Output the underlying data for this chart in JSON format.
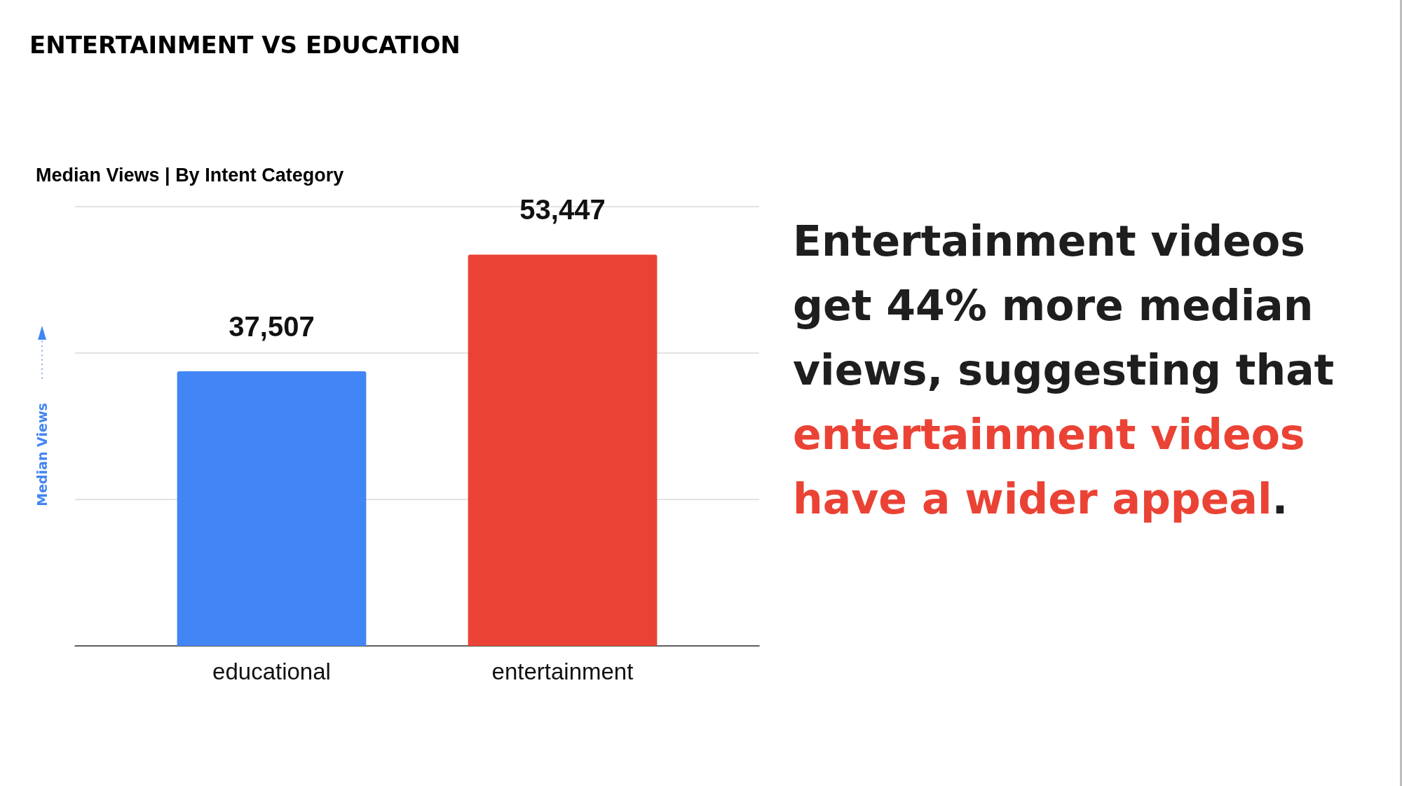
{
  "chart_data": {
    "type": "bar",
    "title": "ENTERTAINMENT VS EDUCATION",
    "subtitle": "Median Views | By Intent Category",
    "ylabel": "Median Views",
    "categories": [
      "educational",
      "entertainment"
    ],
    "values": [
      37507,
      53447
    ],
    "colors": [
      "#4285f4",
      "#ea4335"
    ],
    "value_labels": [
      "37,507",
      "53,447"
    ],
    "ylim": [
      0,
      60000
    ],
    "yticks": [
      {
        "value": 0,
        "label": null
      },
      {
        "value": 20000,
        "label": null
      },
      {
        "value": 40000,
        "label": null
      },
      {
        "value": 60000,
        "label": null
      }
    ],
    "grid": "y",
    "tick_labels": "x",
    "annotations": [
      "Entertainment videos get 44% more median views, suggesting that ",
      "entertainment videos ",
      "have a wider appeal",
      "."
    ]
  }
}
